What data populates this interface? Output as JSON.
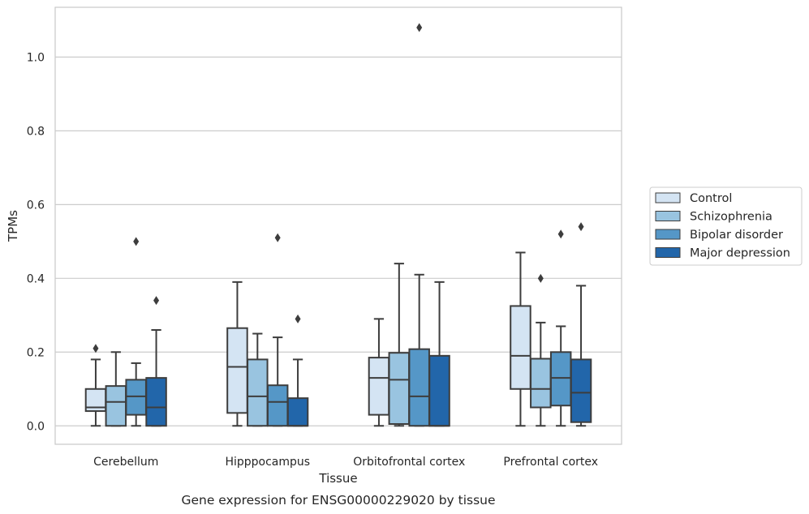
{
  "chart_data": {
    "type": "box",
    "caption": "Gene expression for ENSG00000229020 by tissue",
    "xlabel": "Tissue",
    "ylabel": "TPMs",
    "ylim": [
      -0.05,
      1.135
    ],
    "yticks": [
      0.0,
      0.2,
      0.4,
      0.6,
      0.8,
      1.0
    ],
    "ytick_labels": [
      "0.0",
      "0.2",
      "0.4",
      "0.6",
      "0.8",
      "1.0"
    ],
    "grid": "horizontal",
    "legend_position": "right",
    "categories": [
      "Cerebellum",
      "Hipppocampus",
      "Orbitofrontal cortex",
      "Prefrontal cortex"
    ],
    "series": [
      {
        "name": "Control",
        "color": "#d4e4f3",
        "boxes": [
          {
            "whislo": 0.0,
            "q1": 0.04,
            "med": 0.05,
            "q3": 0.1,
            "whishi": 0.18,
            "fliers": [
              0.21
            ]
          },
          {
            "whislo": 0.0,
            "q1": 0.035,
            "med": 0.16,
            "q3": 0.265,
            "whishi": 0.39,
            "fliers": []
          },
          {
            "whislo": 0.0,
            "q1": 0.03,
            "med": 0.13,
            "q3": 0.185,
            "whishi": 0.29,
            "fliers": []
          },
          {
            "whislo": 0.0,
            "q1": 0.1,
            "med": 0.19,
            "q3": 0.325,
            "whishi": 0.47,
            "fliers": []
          }
        ]
      },
      {
        "name": "Schizophrenia",
        "color": "#99c4e0",
        "boxes": [
          {
            "whislo": 0.0,
            "q1": 0.0,
            "med": 0.065,
            "q3": 0.108,
            "whishi": 0.2,
            "fliers": []
          },
          {
            "whislo": 0.0,
            "q1": 0.0,
            "med": 0.08,
            "q3": 0.18,
            "whishi": 0.25,
            "fliers": []
          },
          {
            "whislo": 0.0,
            "q1": 0.005,
            "med": 0.125,
            "q3": 0.198,
            "whishi": 0.44,
            "fliers": []
          },
          {
            "whislo": 0.0,
            "q1": 0.05,
            "med": 0.1,
            "q3": 0.182,
            "whishi": 0.28,
            "fliers": [
              0.4
            ]
          }
        ]
      },
      {
        "name": "Bipolar disorder",
        "color": "#5597c7",
        "boxes": [
          {
            "whislo": 0.0,
            "q1": 0.03,
            "med": 0.08,
            "q3": 0.125,
            "whishi": 0.17,
            "fliers": [
              0.5
            ]
          },
          {
            "whislo": 0.0,
            "q1": 0.0,
            "med": 0.065,
            "q3": 0.11,
            "whishi": 0.24,
            "fliers": [
              0.51
            ]
          },
          {
            "whislo": 0.0,
            "q1": 0.0,
            "med": 0.08,
            "q3": 0.208,
            "whishi": 0.41,
            "fliers": [
              1.08
            ]
          },
          {
            "whislo": 0.0,
            "q1": 0.055,
            "med": 0.13,
            "q3": 0.2,
            "whishi": 0.27,
            "fliers": [
              0.52
            ]
          }
        ]
      },
      {
        "name": "Major depression",
        "color": "#2266aa",
        "boxes": [
          {
            "whislo": 0.0,
            "q1": 0.0,
            "med": 0.05,
            "q3": 0.13,
            "whishi": 0.26,
            "fliers": [
              0.34
            ]
          },
          {
            "whislo": 0.0,
            "q1": 0.0,
            "med": 0.0,
            "q3": 0.075,
            "whishi": 0.18,
            "fliers": [
              0.29
            ]
          },
          {
            "whislo": 0.0,
            "q1": 0.0,
            "med": 0.0,
            "q3": 0.19,
            "whishi": 0.39,
            "fliers": []
          },
          {
            "whislo": 0.0,
            "q1": 0.01,
            "med": 0.09,
            "q3": 0.18,
            "whishi": 0.38,
            "fliers": [
              0.54
            ]
          }
        ]
      }
    ]
  }
}
